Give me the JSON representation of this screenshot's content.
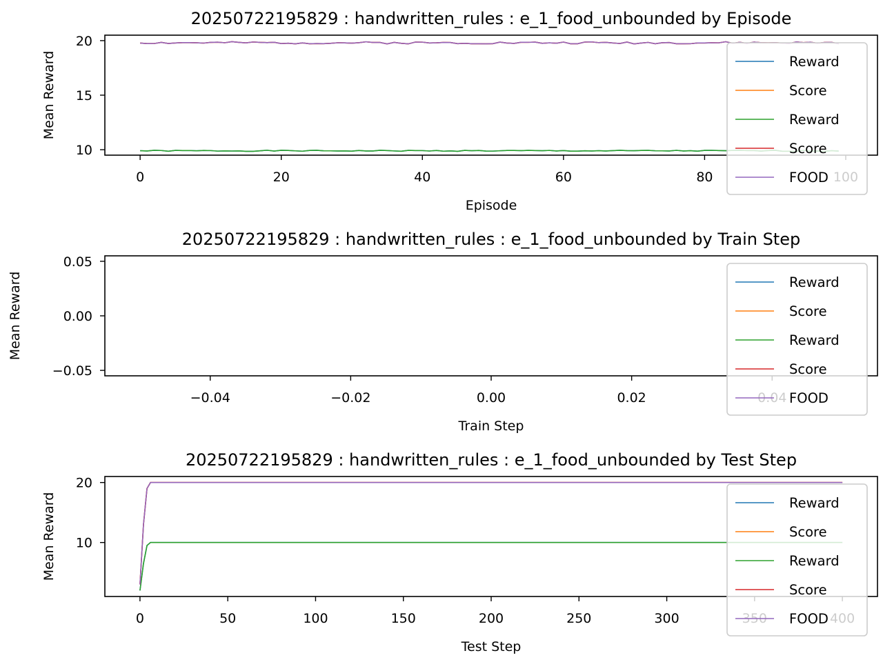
{
  "chart_data": [
    {
      "type": "line",
      "title": "20250722195829 : handwritten_rules : e_1_food_unbounded by Episode",
      "xlabel": "Episode",
      "ylabel": "Mean Reward",
      "xlim": [
        -5,
        104.5
      ],
      "ylim": [
        9.5,
        20.5
      ],
      "xticks": [
        0,
        20,
        40,
        60,
        80,
        100
      ],
      "yticks": [
        10,
        15,
        20
      ],
      "tick_decimals": 0,
      "grid": false,
      "legend_position": "upper-right",
      "x": {
        "start": 0,
        "end": 99,
        "count": 100
      },
      "series": [
        {
          "name": "Reward",
          "color": "#1f77b4",
          "base": 9.9,
          "amp": 0.05,
          "seed": 1
        },
        {
          "name": "Score",
          "color": "#ff7f0e",
          "base": 19.8,
          "amp": 0.1,
          "seed": 2
        },
        {
          "name": "Reward",
          "color": "#2ca02c",
          "base": 9.9,
          "amp": 0.05,
          "seed": 1
        },
        {
          "name": "Score",
          "color": "#d62728",
          "base": 19.8,
          "amp": 0.1,
          "seed": 2
        },
        {
          "name": "FOOD",
          "color": "#9467bd",
          "base": 19.8,
          "amp": 0.1,
          "seed": 2
        }
      ]
    },
    {
      "type": "line",
      "title": "20250722195829 : handwritten_rules : e_1_food_unbounded by Train Step",
      "xlabel": "Train Step",
      "ylabel": "Mean Reward",
      "xlim": [
        -0.055,
        0.055
      ],
      "ylim": [
        -0.055,
        0.055
      ],
      "xticks": [
        -0.04,
        -0.02,
        0.0,
        0.02,
        0.04
      ],
      "yticks": [
        -0.05,
        0.0,
        0.05
      ],
      "tick_decimals": 2,
      "grid": false,
      "legend_position": "upper-right",
      "series": [
        {
          "name": "Reward",
          "color": "#1f77b4"
        },
        {
          "name": "Score",
          "color": "#ff7f0e"
        },
        {
          "name": "Reward",
          "color": "#2ca02c"
        },
        {
          "name": "Score",
          "color": "#d62728"
        },
        {
          "name": "FOOD",
          "color": "#9467bd"
        }
      ]
    },
    {
      "type": "line",
      "title": "20250722195829 : handwritten_rules : e_1_food_unbounded by Test Step",
      "xlabel": "Test Step",
      "ylabel": "Mean Reward",
      "xlim": [
        -20,
        420
      ],
      "ylim": [
        1,
        21
      ],
      "xticks": [
        0,
        50,
        100,
        150,
        200,
        250,
        300,
        350,
        400
      ],
      "yticks": [
        10,
        20
      ],
      "tick_decimals": 0,
      "grid": false,
      "legend_position": "upper-right",
      "series": [
        {
          "name": "Reward",
          "color": "#1f77b4",
          "points": [
            [
              0,
              2
            ],
            [
              2,
              6.5
            ],
            [
              4,
              9.5
            ],
            [
              6,
              10
            ],
            [
              400,
              10
            ]
          ]
        },
        {
          "name": "Score",
          "color": "#ff7f0e",
          "points": [
            [
              0,
              3
            ],
            [
              2,
              13
            ],
            [
              4,
              19
            ],
            [
              6,
              20
            ],
            [
              400,
              20
            ]
          ]
        },
        {
          "name": "Reward",
          "color": "#2ca02c",
          "points": [
            [
              0,
              2
            ],
            [
              2,
              6.5
            ],
            [
              4,
              9.5
            ],
            [
              6,
              10
            ],
            [
              400,
              10
            ]
          ]
        },
        {
          "name": "Score",
          "color": "#d62728",
          "points": [
            [
              0,
              3
            ],
            [
              2,
              13
            ],
            [
              4,
              19
            ],
            [
              6,
              20
            ],
            [
              400,
              20
            ]
          ]
        },
        {
          "name": "FOOD",
          "color": "#9467bd",
          "points": [
            [
              0,
              3
            ],
            [
              2,
              13
            ],
            [
              4,
              19
            ],
            [
              6,
              20
            ],
            [
              400,
              20
            ]
          ]
        }
      ]
    }
  ]
}
